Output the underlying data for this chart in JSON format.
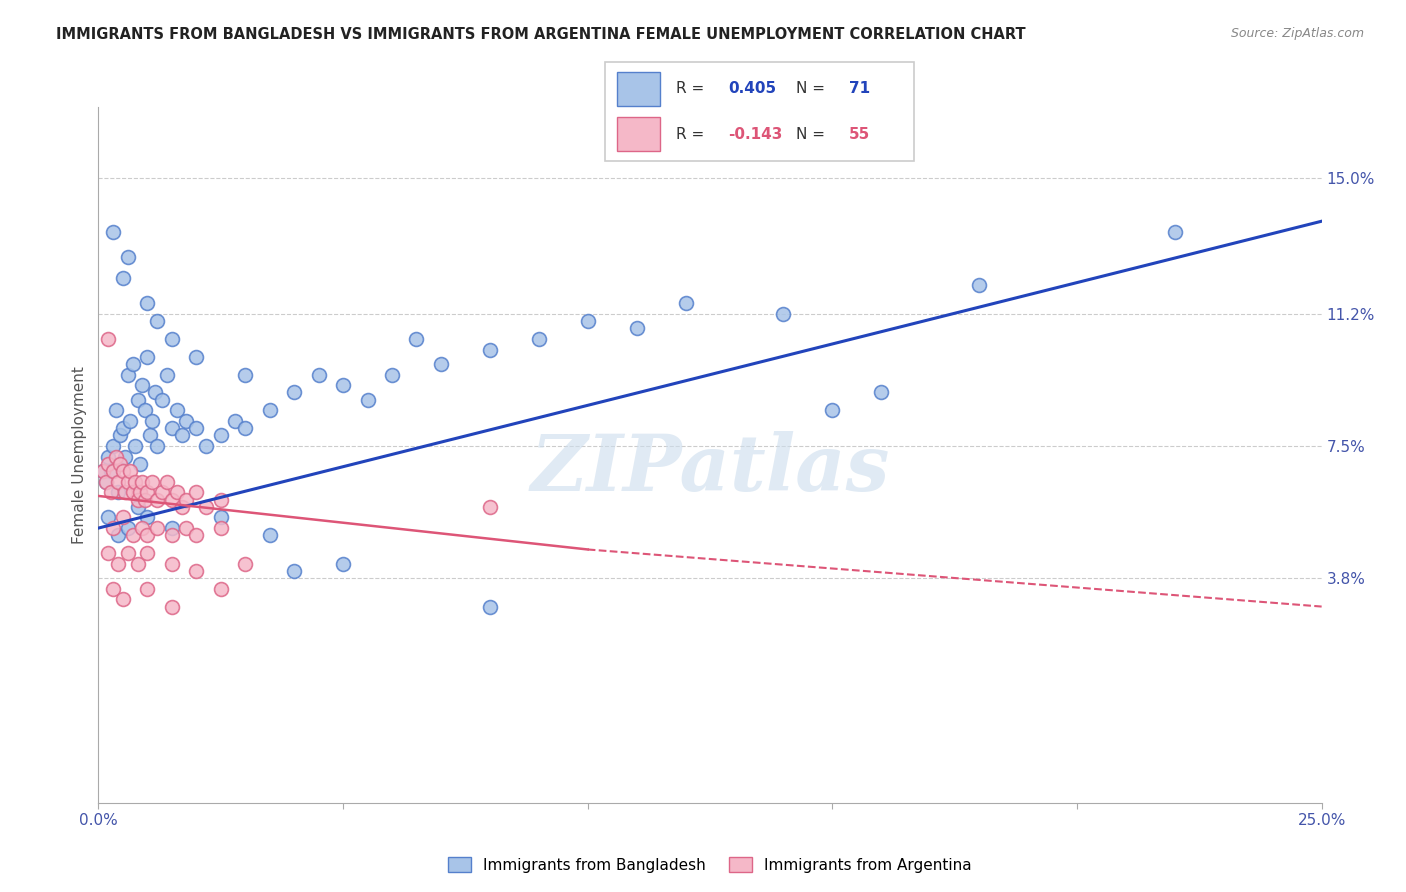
{
  "title": "IMMIGRANTS FROM BANGLADESH VS IMMIGRANTS FROM ARGENTINA FEMALE UNEMPLOYMENT CORRELATION CHART",
  "source": "Source: ZipAtlas.com",
  "ylabel": "Female Unemployment",
  "ytick_vals": [
    15.0,
    11.2,
    7.5,
    3.8
  ],
  "ytick_labels": [
    "15.0%",
    "11.2%",
    "7.5%",
    "3.8%"
  ],
  "xlim": [
    0.0,
    25.0
  ],
  "ylim": [
    -2.5,
    17.0
  ],
  "watermark": "ZIPatlas",
  "bangladesh_color": "#a8c4e8",
  "bangladesh_edge": "#5580cc",
  "argentina_color": "#f5b8c8",
  "argentina_edge": "#dd6688",
  "trendline_bd_color": "#2244bb",
  "trendline_ar_color": "#dd5577",
  "legend_bd_color": "#a8c4e8",
  "legend_ar_color": "#f5b8c8",
  "bd_R": "0.405",
  "bd_N": "71",
  "ar_R": "-0.143",
  "ar_N": "55",
  "bd_label": "Immigrants from Bangladesh",
  "ar_label": "Immigrants from Argentina",
  "bd_trend": [
    0.0,
    5.2,
    25.0,
    13.8
  ],
  "ar_trend_solid": [
    0.0,
    6.1,
    10.0,
    4.6
  ],
  "ar_trend_dash": [
    10.0,
    4.6,
    25.0,
    3.0
  ],
  "bangladesh_scatter": [
    [
      0.1,
      6.8
    ],
    [
      0.15,
      6.5
    ],
    [
      0.2,
      7.2
    ],
    [
      0.25,
      6.8
    ],
    [
      0.3,
      7.5
    ],
    [
      0.35,
      8.5
    ],
    [
      0.4,
      6.2
    ],
    [
      0.45,
      7.8
    ],
    [
      0.5,
      8.0
    ],
    [
      0.55,
      7.2
    ],
    [
      0.6,
      9.5
    ],
    [
      0.65,
      8.2
    ],
    [
      0.7,
      9.8
    ],
    [
      0.75,
      7.5
    ],
    [
      0.8,
      8.8
    ],
    [
      0.85,
      7.0
    ],
    [
      0.9,
      9.2
    ],
    [
      0.95,
      8.5
    ],
    [
      1.0,
      10.0
    ],
    [
      1.05,
      7.8
    ],
    [
      1.1,
      8.2
    ],
    [
      1.15,
      9.0
    ],
    [
      1.2,
      7.5
    ],
    [
      1.3,
      8.8
    ],
    [
      1.4,
      9.5
    ],
    [
      1.5,
      8.0
    ],
    [
      1.6,
      8.5
    ],
    [
      1.7,
      7.8
    ],
    [
      1.8,
      8.2
    ],
    [
      2.0,
      8.0
    ],
    [
      2.2,
      7.5
    ],
    [
      2.5,
      7.8
    ],
    [
      2.8,
      8.2
    ],
    [
      3.0,
      8.0
    ],
    [
      3.5,
      8.5
    ],
    [
      4.0,
      9.0
    ],
    [
      4.5,
      9.5
    ],
    [
      5.0,
      9.2
    ],
    [
      5.5,
      8.8
    ],
    [
      6.0,
      9.5
    ],
    [
      6.5,
      10.5
    ],
    [
      7.0,
      9.8
    ],
    [
      8.0,
      10.2
    ],
    [
      9.0,
      10.5
    ],
    [
      10.0,
      11.0
    ],
    [
      11.0,
      10.8
    ],
    [
      12.0,
      11.5
    ],
    [
      14.0,
      11.2
    ],
    [
      18.0,
      12.0
    ],
    [
      22.0,
      13.5
    ],
    [
      0.3,
      13.5
    ],
    [
      0.5,
      12.2
    ],
    [
      0.6,
      12.8
    ],
    [
      1.0,
      11.5
    ],
    [
      1.2,
      11.0
    ],
    [
      1.5,
      10.5
    ],
    [
      2.0,
      10.0
    ],
    [
      3.0,
      9.5
    ],
    [
      4.0,
      4.0
    ],
    [
      5.0,
      4.2
    ],
    [
      8.0,
      3.0
    ],
    [
      15.0,
      8.5
    ],
    [
      0.2,
      5.5
    ],
    [
      0.4,
      5.0
    ],
    [
      0.6,
      5.2
    ],
    [
      0.8,
      5.8
    ],
    [
      1.0,
      5.5
    ],
    [
      1.5,
      5.2
    ],
    [
      2.5,
      5.5
    ],
    [
      3.5,
      5.0
    ],
    [
      16.0,
      9.0
    ]
  ],
  "argentina_scatter": [
    [
      0.1,
      6.8
    ],
    [
      0.15,
      6.5
    ],
    [
      0.2,
      7.0
    ],
    [
      0.25,
      6.2
    ],
    [
      0.3,
      6.8
    ],
    [
      0.35,
      7.2
    ],
    [
      0.4,
      6.5
    ],
    [
      0.45,
      7.0
    ],
    [
      0.5,
      6.8
    ],
    [
      0.55,
      6.2
    ],
    [
      0.6,
      6.5
    ],
    [
      0.65,
      6.8
    ],
    [
      0.7,
      6.2
    ],
    [
      0.75,
      6.5
    ],
    [
      0.8,
      6.0
    ],
    [
      0.85,
      6.2
    ],
    [
      0.9,
      6.5
    ],
    [
      0.95,
      6.0
    ],
    [
      1.0,
      6.2
    ],
    [
      1.1,
      6.5
    ],
    [
      1.2,
      6.0
    ],
    [
      1.3,
      6.2
    ],
    [
      1.4,
      6.5
    ],
    [
      1.5,
      6.0
    ],
    [
      1.6,
      6.2
    ],
    [
      1.7,
      5.8
    ],
    [
      1.8,
      6.0
    ],
    [
      2.0,
      6.2
    ],
    [
      2.2,
      5.8
    ],
    [
      2.5,
      6.0
    ],
    [
      0.3,
      5.2
    ],
    [
      0.5,
      5.5
    ],
    [
      0.7,
      5.0
    ],
    [
      0.9,
      5.2
    ],
    [
      1.0,
      5.0
    ],
    [
      1.2,
      5.2
    ],
    [
      1.5,
      5.0
    ],
    [
      1.8,
      5.2
    ],
    [
      2.0,
      5.0
    ],
    [
      2.5,
      5.2
    ],
    [
      0.2,
      4.5
    ],
    [
      0.4,
      4.2
    ],
    [
      0.6,
      4.5
    ],
    [
      0.8,
      4.2
    ],
    [
      1.0,
      4.5
    ],
    [
      1.5,
      4.2
    ],
    [
      2.0,
      4.0
    ],
    [
      3.0,
      4.2
    ],
    [
      0.3,
      3.5
    ],
    [
      0.5,
      3.2
    ],
    [
      1.0,
      3.5
    ],
    [
      1.5,
      3.0
    ],
    [
      2.5,
      3.5
    ],
    [
      8.0,
      5.8
    ],
    [
      0.2,
      10.5
    ]
  ]
}
